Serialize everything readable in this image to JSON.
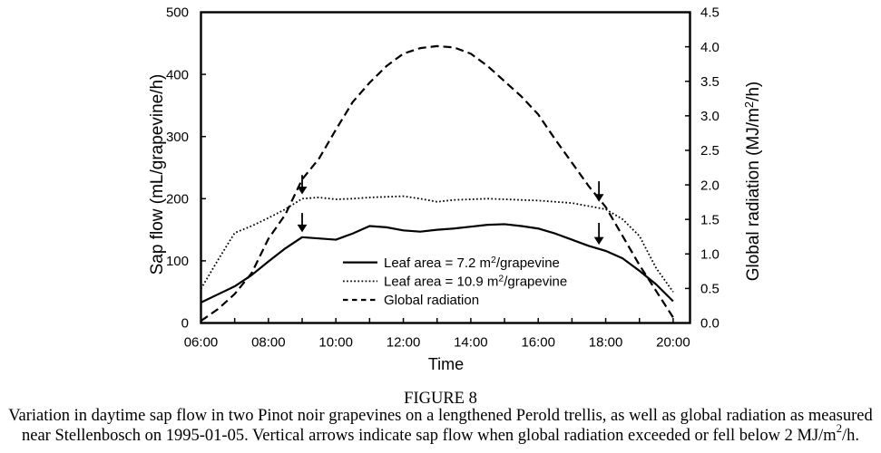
{
  "page": {
    "background_color": "#ffffff",
    "ink_color": "#000000"
  },
  "figure": {
    "label": "FIGURE 8",
    "caption_lines": [
      [
        {
          "text": "Variation in daytime sap flow in two Pinot noir grapevines on a lengthened Perold trellis, as well as global radiation as measured"
        }
      ],
      [
        {
          "text": "near Stellenbosch on 1995-01-05. Vertical arrows indicate sap flow when global radiation exceeded or fell below 2 MJ/m"
        },
        {
          "text": "2",
          "sup": true
        },
        {
          "text": "/h."
        }
      ]
    ]
  },
  "chart_data": {
    "type": "line",
    "x_axis": {
      "title": "Time",
      "min": 6,
      "max": 20.5,
      "ticks": [
        {
          "t": 6,
          "label": "06:00"
        },
        {
          "t": 7,
          "label": ""
        },
        {
          "t": 8,
          "label": "08:00"
        },
        {
          "t": 9,
          "label": ""
        },
        {
          "t": 10,
          "label": "10:00"
        },
        {
          "t": 11,
          "label": ""
        },
        {
          "t": 12,
          "label": "12:00"
        },
        {
          "t": 13,
          "label": ""
        },
        {
          "t": 14,
          "label": "14:00"
        },
        {
          "t": 15,
          "label": ""
        },
        {
          "t": 16,
          "label": "16:00"
        },
        {
          "t": 17,
          "label": ""
        },
        {
          "t": 18,
          "label": "18:00"
        },
        {
          "t": 19,
          "label": ""
        },
        {
          "t": 20,
          "label": "20:00"
        }
      ]
    },
    "left_axis": {
      "title": "Sap flow (mL/grapevine/h)",
      "title_segments": [
        {
          "text": "Sap flow (mL/grapevine/h)"
        }
      ],
      "min": 0,
      "max": 500,
      "ticks": [
        {
          "v": 0,
          "label": "0"
        },
        {
          "v": 100,
          "label": "100"
        },
        {
          "v": 200,
          "label": "200"
        },
        {
          "v": 300,
          "label": "300"
        },
        {
          "v": 400,
          "label": "400"
        },
        {
          "v": 500,
          "label": "500"
        }
      ]
    },
    "right_axis": {
      "title": "Global radiation (MJ/m2/h)",
      "title_segments": [
        {
          "text": "Global radiation (MJ/m"
        },
        {
          "text": "2",
          "sup": true
        },
        {
          "text": "/h)"
        }
      ],
      "min": 0,
      "max": 4.5,
      "ticks": [
        {
          "v": 0,
          "label": "0.0"
        },
        {
          "v": 0.5,
          "label": "0.5"
        },
        {
          "v": 1,
          "label": "1.0"
        },
        {
          "v": 1.5,
          "label": "1.5"
        },
        {
          "v": 2,
          "label": "2.0"
        },
        {
          "v": 2.5,
          "label": "2.5"
        },
        {
          "v": 3,
          "label": "3.0"
        },
        {
          "v": 3.5,
          "label": "3.5"
        },
        {
          "v": 4,
          "label": "4.0"
        },
        {
          "v": 4.5,
          "label": "4.5"
        }
      ]
    },
    "x": [
      6,
      6.5,
      7,
      7.5,
      8,
      8.5,
      9,
      9.5,
      10,
      10.5,
      11,
      11.5,
      12,
      12.5,
      13,
      13.5,
      14,
      14.5,
      15,
      15.5,
      16,
      16.5,
      17,
      17.5,
      18,
      18.5,
      19,
      19.5,
      20
    ],
    "series": [
      {
        "name": "Leaf area = 7.2 m2/grapevine",
        "legend_segments": [
          {
            "text": "Leaf area = 7.2 m"
          },
          {
            "text": "2",
            "sup": true
          },
          {
            "text": "/grapevine"
          }
        ],
        "style": "solid",
        "axis": "left",
        "values": [
          33,
          46,
          59,
          77,
          99,
          120,
          138,
          136,
          134,
          144,
          156,
          154,
          149,
          147,
          150,
          152,
          155,
          158,
          159,
          156,
          152,
          144,
          134,
          124,
          116,
          104,
          84,
          62,
          35
        ]
      },
      {
        "name": "Leaf area = 10.9 m2/grapevine",
        "legend_segments": [
          {
            "text": "Leaf area = 10.9 m"
          },
          {
            "text": "2",
            "sup": true
          },
          {
            "text": "/grapevine"
          }
        ],
        "style": "dotted",
        "axis": "left",
        "values": [
          55,
          101,
          145,
          156,
          169,
          183,
          200,
          202,
          199,
          200,
          202,
          203,
          204,
          200,
          195,
          198,
          199,
          200,
          199,
          198,
          197,
          195,
          193,
          188,
          183,
          167,
          140,
          88,
          50
        ]
      },
      {
        "name": "Global radiation",
        "legend_segments": [
          {
            "text": "Global radiation"
          }
        ],
        "style": "dashed",
        "axis": "right",
        "values": [
          0.03,
          0.2,
          0.42,
          0.72,
          1.22,
          1.57,
          2.08,
          2.38,
          2.8,
          3.2,
          3.48,
          3.72,
          3.9,
          3.98,
          4.01,
          3.99,
          3.9,
          3.72,
          3.5,
          3.28,
          3.02,
          2.66,
          2.32,
          1.98,
          1.68,
          1.26,
          0.84,
          0.46,
          0.08
        ]
      }
    ],
    "annotations": {
      "arrows": [
        {
          "time": 9,
          "from_value": 238,
          "to_value": 207,
          "axis": "left"
        },
        {
          "time": 9,
          "from_value": 177,
          "to_value": 146,
          "axis": "left"
        },
        {
          "time": 17.8,
          "from_value": 228,
          "to_value": 195,
          "axis": "left"
        },
        {
          "time": 17.8,
          "from_value": 161,
          "to_value": 126,
          "axis": "left"
        }
      ]
    }
  }
}
